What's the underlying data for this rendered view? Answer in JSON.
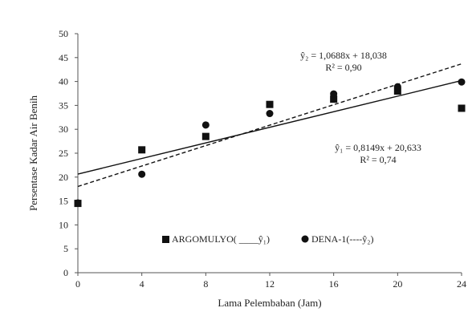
{
  "chart_data": {
    "type": "scatter",
    "title": "",
    "xlabel": "Lama Pelembaban (Jam)",
    "ylabel": "Persentase Kadar Air Benih",
    "xlim": [
      0,
      24
    ],
    "ylim": [
      0,
      50
    ],
    "xticks": [
      "0",
      "4",
      "8",
      "12",
      "16",
      "20",
      "24"
    ],
    "yticks": [
      "0",
      "5",
      "10",
      "15",
      "20",
      "25",
      "30",
      "35",
      "40",
      "45",
      "50"
    ],
    "grid": false,
    "legend_position": "bottom-center",
    "series": [
      {
        "name": "ARGOMULYO( ____ŷ₁)",
        "marker": "square",
        "line_style": "solid",
        "x": [
          0,
          4,
          8,
          12,
          16,
          20,
          24
        ],
        "y": [
          14.5,
          25.7,
          28.5,
          35.2,
          36.3,
          38.0,
          34.4
        ],
        "trend": {
          "slope": 0.8149,
          "intercept": 20.633
        },
        "equation_line1": "ŷ₁ = 0,8149x + 20,633",
        "equation_line2": "R² = 0,74"
      },
      {
        "name": "DENA-1(----ŷ₂)",
        "marker": "circle",
        "line_style": "dashed",
        "x": [
          0,
          4,
          8,
          12,
          16,
          20,
          24
        ],
        "y": [
          14.6,
          20.6,
          30.9,
          33.3,
          37.4,
          38.9,
          39.9
        ],
        "trend": {
          "slope": 1.0688,
          "intercept": 18.038
        },
        "equation_line1": "ŷ₂ = 1,0688x + 18,038",
        "equation_line2": "R² = 0,90"
      }
    ],
    "colors": {
      "ink": "#111111",
      "axis": "#555555"
    }
  }
}
